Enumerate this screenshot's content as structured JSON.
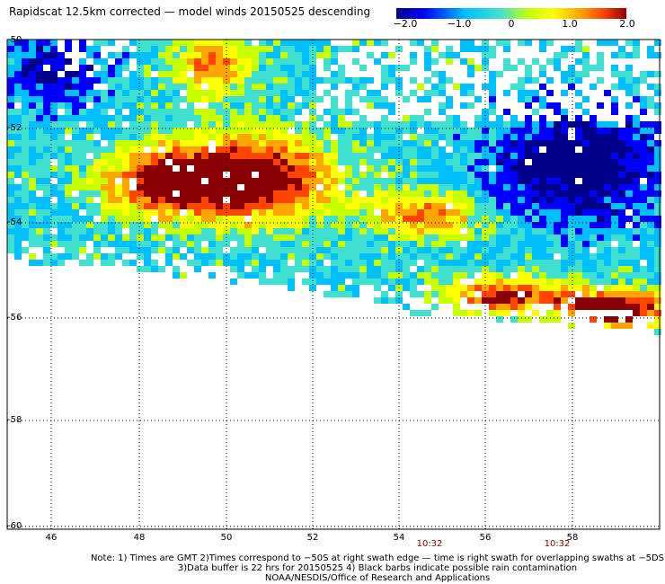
{
  "title": "Rapidscat 12.5km corrected — model winds 20150525 descending",
  "colorbar": {
    "labels": [
      "−2.0",
      "−1.0",
      "0",
      "1.0",
      "2.0"
    ],
    "range": [
      -2.0,
      2.0
    ],
    "colors": [
      "#00008b",
      "#0000ff",
      "#00bfff",
      "#40e0d0",
      "#c8ff00",
      "#ffff00",
      "#ffa500",
      "#ff4500",
      "#8b0000"
    ]
  },
  "axes": {
    "lat_labels": [
      "-50",
      "-52",
      "-54",
      "-56",
      "-58",
      "-60"
    ],
    "lon_labels": [
      "46",
      "48",
      "50",
      "52",
      "54",
      "56",
      "58"
    ],
    "time_labels": [
      "10:32",
      "10:32"
    ]
  },
  "notes": [
    "Note: 1) Times are GMT 2)Times correspond to −50S at right swath edge — time is right swath for overlapping swaths at −5DS",
    "3)Data buffer is 22 hrs for 20150525 4) Black barbs indicate possible rain contamination",
    "NOAA/NESDIS/Office of Research and Applications"
  ]
}
